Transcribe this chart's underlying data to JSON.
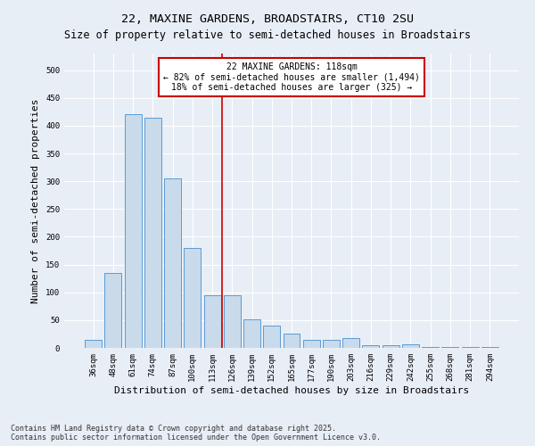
{
  "title": "22, MAXINE GARDENS, BROADSTAIRS, CT10 2SU",
  "subtitle": "Size of property relative to semi-detached houses in Broadstairs",
  "xlabel": "Distribution of semi-detached houses by size in Broadstairs",
  "ylabel": "Number of semi-detached properties",
  "categories": [
    "36sqm",
    "48sqm",
    "61sqm",
    "74sqm",
    "87sqm",
    "100sqm",
    "113sqm",
    "126sqm",
    "139sqm",
    "152sqm",
    "165sqm",
    "177sqm",
    "190sqm",
    "203sqm",
    "216sqm",
    "229sqm",
    "242sqm",
    "255sqm",
    "268sqm",
    "281sqm",
    "294sqm"
  ],
  "values": [
    15,
    135,
    420,
    415,
    305,
    180,
    95,
    95,
    52,
    40,
    25,
    15,
    15,
    18,
    5,
    5,
    7,
    2,
    2,
    2,
    2
  ],
  "bar_color": "#c9daea",
  "bar_edge_color": "#5b9bd5",
  "vline_index": 6,
  "vline_color": "#cc0000",
  "annotation_line1": "22 MAXINE GARDENS: 118sqm",
  "annotation_line2": "← 82% of semi-detached houses are smaller (1,494)",
  "annotation_line3": "18% of semi-detached houses are larger (325) →",
  "annotation_box_color": "#cc0000",
  "ylim": [
    0,
    530
  ],
  "yticks": [
    0,
    50,
    100,
    150,
    200,
    250,
    300,
    350,
    400,
    450,
    500
  ],
  "footnote": "Contains HM Land Registry data © Crown copyright and database right 2025.\nContains public sector information licensed under the Open Government Licence v3.0.",
  "bg_color": "#e8eef6",
  "title_fontsize": 9.5,
  "subtitle_fontsize": 8.5,
  "axis_label_fontsize": 8,
  "tick_fontsize": 6.5,
  "annot_fontsize": 7,
  "footnote_fontsize": 6
}
